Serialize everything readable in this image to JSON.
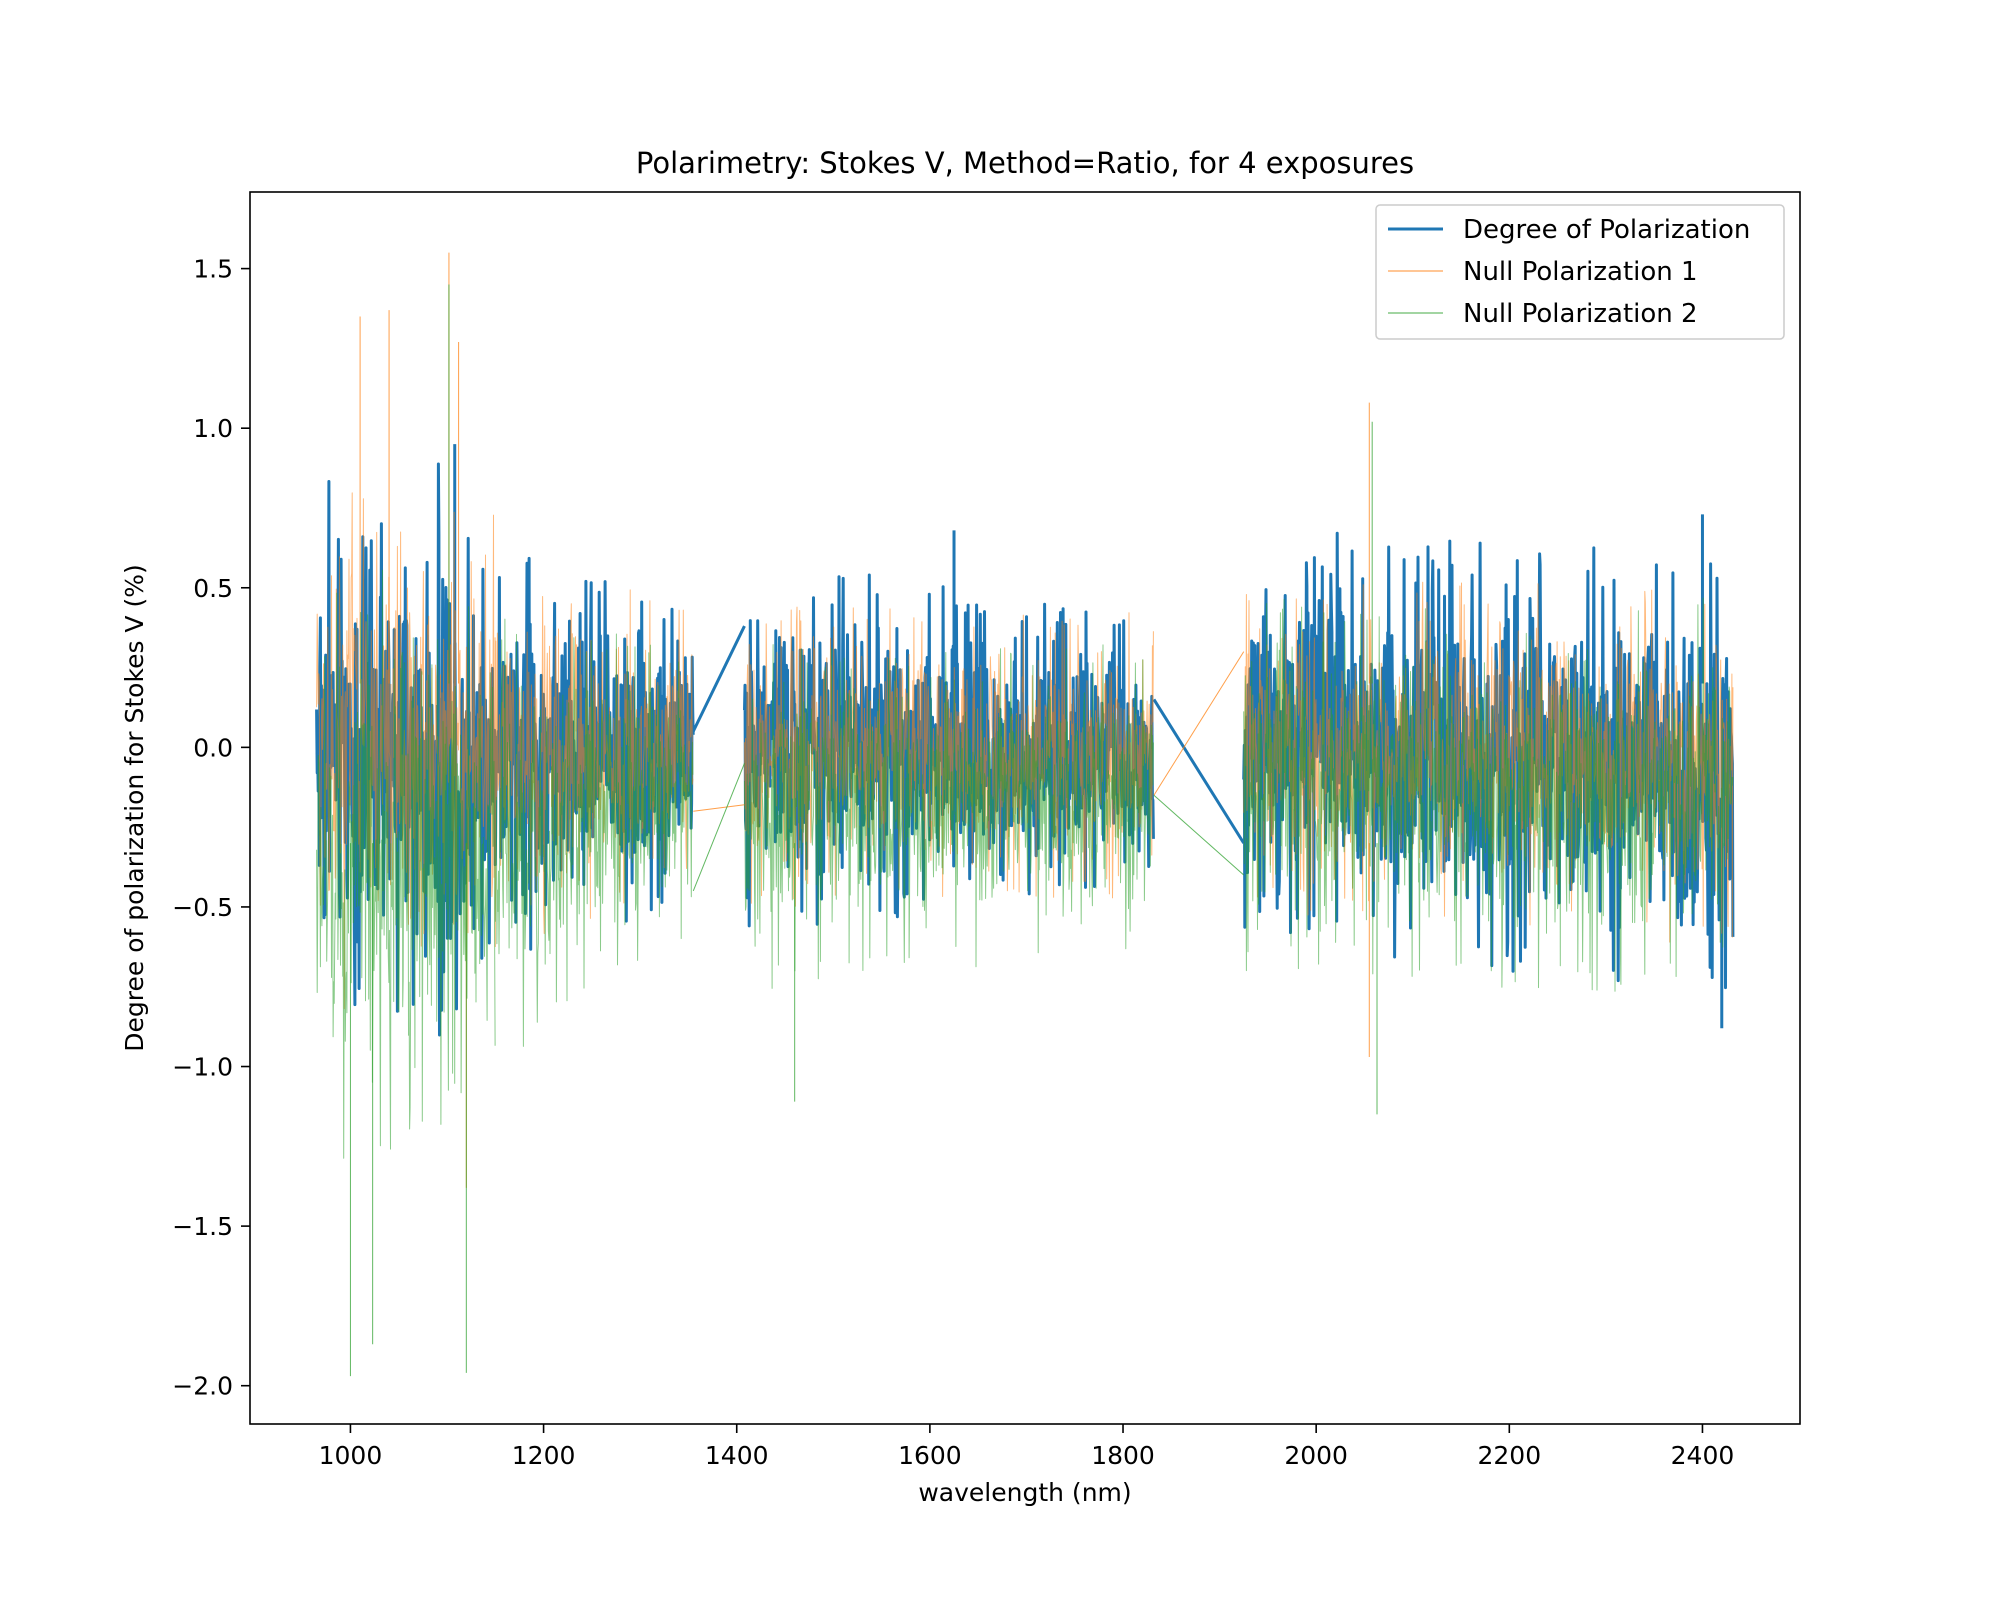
{
  "chart_data": {
    "type": "line",
    "title": "Polarimetry: Stokes V, Method=Ratio, for 4 exposures",
    "xlabel": "wavelength (nm)",
    "ylabel": "Degree of polarization for Stokes V (%)",
    "xlim": [
      896,
      2501
    ],
    "ylim": [
      -2.12,
      1.74
    ],
    "xticks": [
      1000,
      1200,
      1400,
      1600,
      1800,
      2000,
      2200,
      2400
    ],
    "xtick_labels": [
      "1000",
      "1200",
      "1400",
      "1600",
      "1800",
      "2000",
      "2200",
      "2400"
    ],
    "yticks": [
      -2.0,
      -1.5,
      -1.0,
      -0.5,
      0.0,
      0.5,
      1.0,
      1.5
    ],
    "ytick_labels": [
      "−2.0",
      "−1.5",
      "−1.0",
      "−0.5",
      "0.0",
      "0.5",
      "1.0",
      "1.5"
    ],
    "grid": false,
    "legend_position": "top-right",
    "segments": [
      {
        "x_start": 965,
        "x_end": 1355
      },
      {
        "x_start": 1408,
        "x_end": 1832
      },
      {
        "x_start": 1925,
        "x_end": 2432
      }
    ],
    "series": [
      {
        "name": "Degree of Polarization",
        "color": "#1f77b4",
        "linewidth": 3,
        "opacity": 1.0,
        "envelope": [
          {
            "x_start": 965,
            "x_end": 1090,
            "ymin_start": -0.85,
            "ymax_start": 0.88,
            "ymin_end": -0.8,
            "ymax_end": 0.6
          },
          {
            "x_start": 1090,
            "x_end": 1130,
            "ymin_start": -0.9,
            "ymax_start": 0.85,
            "ymin_end": -0.85,
            "ymax_end": 0.7
          },
          {
            "x_start": 1130,
            "x_end": 1355,
            "ymin_start": -0.7,
            "ymax_start": 0.6,
            "ymin_end": -0.45,
            "ymax_end": 0.48
          },
          {
            "x_start": 1408,
            "x_end": 1832,
            "ymin_start": -0.55,
            "ymax_start": 0.58,
            "ymin_end": -0.45,
            "ymax_end": 0.38
          },
          {
            "x_start": 1925,
            "x_end": 2432,
            "ymin_start": -0.55,
            "ymax_start": 0.7,
            "ymin_end": -0.8,
            "ymax_end": 0.55
          }
        ],
        "connectors": [
          {
            "x0": 1355,
            "y0": 0.05,
            "x1": 1408,
            "y1": 0.38
          },
          {
            "x0": 1832,
            "y0": 0.15,
            "x1": 1925,
            "y1": -0.3
          }
        ],
        "peaks": [
          {
            "x": 1108,
            "y": 0.95
          },
          {
            "x": 1625,
            "y": 0.68
          },
          {
            "x": 2400,
            "y": 0.73
          },
          {
            "x": 2420,
            "y": -0.88
          }
        ]
      },
      {
        "name": "Null Polarization 1",
        "color": "#ff7f0e",
        "linewidth": 1,
        "opacity": 0.55,
        "envelope": [
          {
            "x_start": 965,
            "x_end": 1150,
            "ymin_start": -0.8,
            "ymax_start": 0.9,
            "ymin_end": -0.75,
            "ymax_end": 0.7
          },
          {
            "x_start": 1150,
            "x_end": 1355,
            "ymin_start": -0.65,
            "ymax_start": 0.55,
            "ymin_end": -0.45,
            "ymax_end": 0.45
          },
          {
            "x_start": 1408,
            "x_end": 1832,
            "ymin_start": -0.5,
            "ymax_start": 0.45,
            "ymin_end": -0.45,
            "ymax_end": 0.4
          },
          {
            "x_start": 1925,
            "x_end": 2432,
            "ymin_start": -0.5,
            "ymax_start": 0.5,
            "ymin_end": -0.6,
            "ymax_end": 0.5
          }
        ],
        "connectors": [
          {
            "x0": 1355,
            "y0": -0.2,
            "x1": 1408,
            "y1": -0.18
          },
          {
            "x0": 1832,
            "y0": -0.15,
            "x1": 1925,
            "y1": 0.3
          }
        ],
        "peaks": [
          {
            "x": 1102,
            "y": 1.55
          },
          {
            "x": 1112,
            "y": 1.27
          },
          {
            "x": 1040,
            "y": 1.37
          },
          {
            "x": 1010,
            "y": 1.35
          },
          {
            "x": 2055,
            "y": 1.08
          },
          {
            "x": 2055,
            "y": -0.97
          },
          {
            "x": 1120,
            "y": -1.38
          }
        ]
      },
      {
        "name": "Null Polarization 2",
        "color": "#2ca02c",
        "linewidth": 1,
        "opacity": 0.55,
        "envelope": [
          {
            "x_start": 965,
            "x_end": 1150,
            "ymin_start": -1.3,
            "ymax_start": 0.55,
            "ymin_end": -1.1,
            "ymax_end": 0.5
          },
          {
            "x_start": 1150,
            "x_end": 1355,
            "ymin_start": -1.0,
            "ymax_start": 0.4,
            "ymin_end": -0.55,
            "ymax_end": 0.3
          },
          {
            "x_start": 1408,
            "x_end": 1832,
            "ymin_start": -0.75,
            "ymax_start": 0.3,
            "ymin_end": -0.6,
            "ymax_end": 0.3
          },
          {
            "x_start": 1925,
            "x_end": 2432,
            "ymin_start": -0.7,
            "ymax_start": 0.45,
            "ymin_end": -0.75,
            "ymax_end": 0.45
          }
        ],
        "connectors": [
          {
            "x0": 1355,
            "y0": -0.45,
            "x1": 1408,
            "y1": -0.05
          },
          {
            "x0": 1832,
            "y0": -0.15,
            "x1": 1925,
            "y1": -0.4
          }
        ],
        "peaks": [
          {
            "x": 1000,
            "y": -1.97
          },
          {
            "x": 1120,
            "y": -1.96
          },
          {
            "x": 1023,
            "y": -1.87
          },
          {
            "x": 1102,
            "y": 1.45
          },
          {
            "x": 2058,
            "y": 1.02
          },
          {
            "x": 2063,
            "y": -1.15
          },
          {
            "x": 1460,
            "y": -1.11
          }
        ]
      }
    ]
  }
}
